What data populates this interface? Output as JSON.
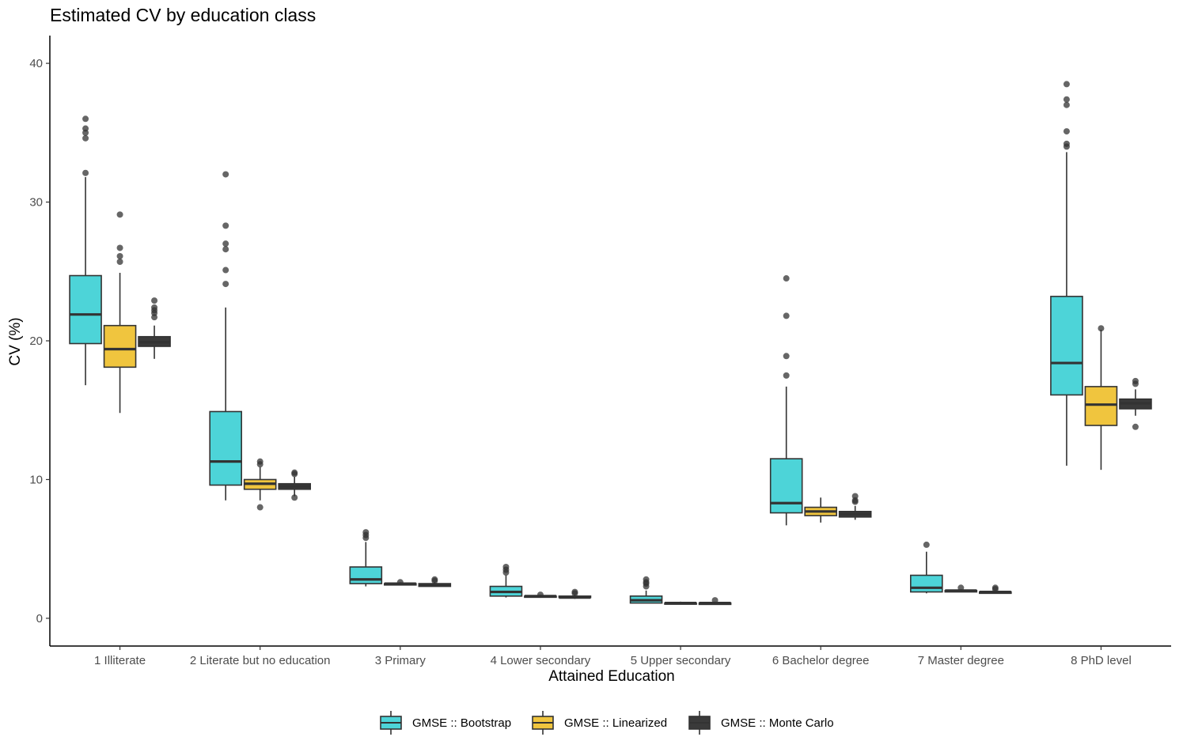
{
  "chart_data": {
    "type": "boxplot",
    "title": "Estimated CV by education class",
    "xlabel": "Attained Education",
    "ylabel": "CV (%)",
    "ylim": [
      -2,
      42
    ],
    "yticks": [
      0,
      10,
      20,
      30,
      40
    ],
    "categories": [
      "1 Illiterate",
      "2 Literate but no education",
      "3 Primary",
      "4 Lower secondary",
      "5 Upper secondary",
      "6 Bachelor degree",
      "7 Master degree",
      "8 PhD level"
    ],
    "series": [
      {
        "name": "GMSE :: Bootstrap",
        "color": "#4dd4d8",
        "boxes": [
          {
            "lower": 16.8,
            "q1": 19.8,
            "median": 21.9,
            "q3": 24.7,
            "upper": 31.8,
            "outliers": [
              32.1,
              34.6,
              35.0,
              35.3,
              36.0
            ]
          },
          {
            "lower": 8.5,
            "q1": 9.6,
            "median": 11.3,
            "q3": 14.9,
            "upper": 22.4,
            "outliers": [
              24.1,
              25.1,
              26.6,
              27.0,
              28.3,
              32.0
            ]
          },
          {
            "lower": 2.3,
            "q1": 2.5,
            "median": 2.8,
            "q3": 3.7,
            "upper": 5.5,
            "outliers": [
              5.8,
              6.0,
              6.2
            ]
          },
          {
            "lower": 1.5,
            "q1": 1.6,
            "median": 1.9,
            "q3": 2.3,
            "upper": 3.1,
            "outliers": [
              3.3,
              3.5,
              3.7
            ]
          },
          {
            "lower": 1.1,
            "q1": 1.1,
            "median": 1.3,
            "q3": 1.6,
            "upper": 2.0,
            "outliers": [
              2.3,
              2.5,
              2.6,
              2.8
            ]
          },
          {
            "lower": 6.7,
            "q1": 7.6,
            "median": 8.3,
            "q3": 11.5,
            "upper": 16.7,
            "outliers": [
              17.5,
              18.9,
              21.8,
              24.5
            ]
          },
          {
            "lower": 1.8,
            "q1": 1.9,
            "median": 2.2,
            "q3": 3.1,
            "upper": 4.8,
            "outliers": [
              5.3
            ]
          },
          {
            "lower": 11.0,
            "q1": 16.1,
            "median": 18.4,
            "q3": 23.2,
            "upper": 33.6,
            "outliers": [
              34.0,
              34.2,
              35.1,
              37.0,
              37.4,
              38.5
            ]
          }
        ]
      },
      {
        "name": "GMSE :: Linearized",
        "color": "#f0c53e",
        "boxes": [
          {
            "lower": 14.8,
            "q1": 18.1,
            "median": 19.4,
            "q3": 21.1,
            "upper": 24.9,
            "outliers": [
              25.7,
              26.1,
              26.7,
              29.1
            ]
          },
          {
            "lower": 8.5,
            "q1": 9.3,
            "median": 9.7,
            "q3": 10.0,
            "upper": 10.9,
            "outliers": [
              8.0,
              11.1,
              11.3
            ]
          },
          {
            "lower": 2.4,
            "q1": 2.4,
            "median": 2.5,
            "q3": 2.5,
            "upper": 2.6,
            "outliers": [
              2.6
            ]
          },
          {
            "lower": 1.5,
            "q1": 1.6,
            "median": 1.6,
            "q3": 1.6,
            "upper": 1.7,
            "outliers": [
              1.7
            ]
          },
          {
            "lower": 1.1,
            "q1": 1.1,
            "median": 1.1,
            "q3": 1.1,
            "upper": 1.2,
            "outliers": []
          },
          {
            "lower": 6.9,
            "q1": 7.4,
            "median": 7.7,
            "q3": 8.0,
            "upper": 8.7,
            "outliers": []
          },
          {
            "lower": 1.9,
            "q1": 1.9,
            "median": 2.0,
            "q3": 2.0,
            "upper": 2.1,
            "outliers": [
              2.2
            ]
          },
          {
            "lower": 10.7,
            "q1": 13.9,
            "median": 15.4,
            "q3": 16.7,
            "upper": 20.8,
            "outliers": [
              20.9
            ]
          }
        ]
      },
      {
        "name": "GMSE :: Monte Carlo",
        "color": "#3a3a3a",
        "boxes": [
          {
            "lower": 18.7,
            "q1": 19.6,
            "median": 19.9,
            "q3": 20.3,
            "upper": 21.1,
            "outliers": [
              21.7,
              22.0,
              22.2,
              22.4,
              22.9
            ]
          },
          {
            "lower": 8.8,
            "q1": 9.3,
            "median": 9.5,
            "q3": 9.7,
            "upper": 10.2,
            "outliers": [
              8.7,
              10.4,
              10.5
            ]
          },
          {
            "lower": 2.3,
            "q1": 2.3,
            "median": 2.4,
            "q3": 2.5,
            "upper": 2.6,
            "outliers": [
              2.7,
              2.8
            ]
          },
          {
            "lower": 1.4,
            "q1": 1.5,
            "median": 1.5,
            "q3": 1.6,
            "upper": 1.7,
            "outliers": [
              1.8,
              1.9
            ]
          },
          {
            "lower": 1.0,
            "q1": 1.0,
            "median": 1.1,
            "q3": 1.1,
            "upper": 1.2,
            "outliers": [
              1.3
            ]
          },
          {
            "lower": 7.1,
            "q1": 7.3,
            "median": 7.5,
            "q3": 7.7,
            "upper": 8.1,
            "outliers": [
              8.4,
              8.5,
              8.8
            ]
          },
          {
            "lower": 1.8,
            "q1": 1.8,
            "median": 1.9,
            "q3": 1.9,
            "upper": 2.0,
            "outliers": [
              2.1,
              2.2
            ]
          },
          {
            "lower": 14.6,
            "q1": 15.1,
            "median": 15.5,
            "q3": 15.8,
            "upper": 16.5,
            "outliers": [
              13.8,
              16.9,
              17.1
            ]
          }
        ]
      }
    ],
    "legend_position": "bottom"
  }
}
